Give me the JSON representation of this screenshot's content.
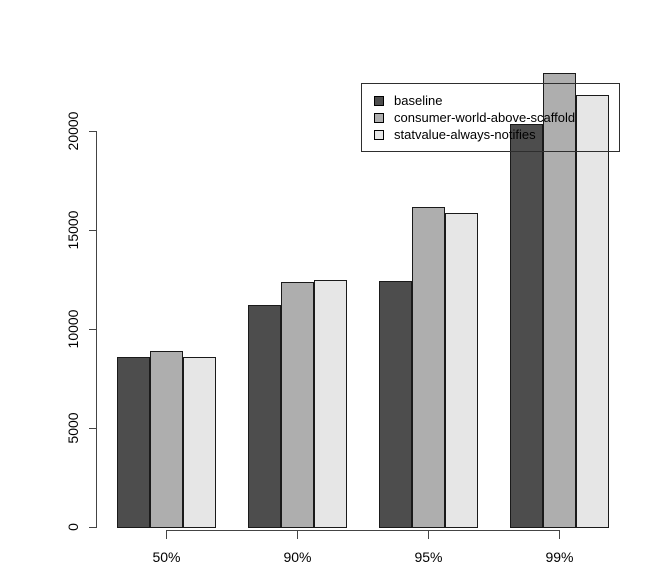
{
  "chart_data": {
    "type": "bar",
    "title": "",
    "categories": [
      "50%",
      "90%",
      "95%",
      "99%"
    ],
    "series": [
      {
        "name": "baseline",
        "color": "#4D4D4D",
        "values": [
          8650,
          11250,
          12500,
          20400
        ]
      },
      {
        "name": "consumer-world-above-scaffold",
        "color": "#AEAEAE",
        "values": [
          8950,
          12450,
          16250,
          23000
        ]
      },
      {
        "name": "statvalue-always-notifies",
        "color": "#E6E6E6",
        "values": [
          8650,
          12550,
          15950,
          21900
        ]
      }
    ],
    "y_ticks": [
      0,
      5000,
      10000,
      15000,
      20000
    ],
    "ylim": [
      0,
      23000
    ],
    "xlabel": "",
    "ylabel": "",
    "grid": false,
    "legend_position": "top-right",
    "bar_border_color": "#1a1a1a",
    "axis_color": "#444444",
    "background_color": "#ffffff"
  }
}
